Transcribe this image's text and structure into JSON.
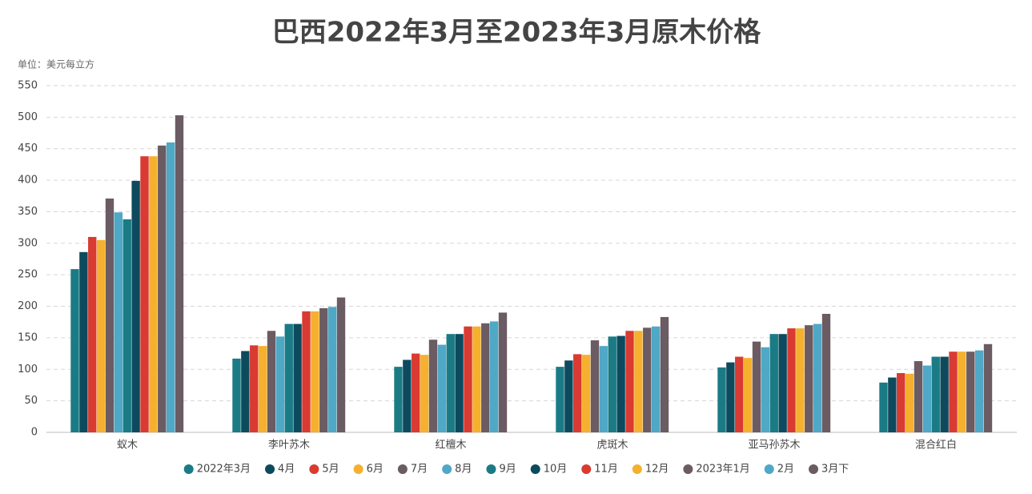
{
  "chart_data": {
    "type": "bar",
    "title": "巴西2022年3月至2023年3月原木价格",
    "y_axis_label": "单位：美元每立方",
    "categories": [
      "蚁木",
      "李叶苏木",
      "红檀木",
      "虎斑木",
      "亚马孙苏木",
      "混合红白"
    ],
    "series": [
      {
        "name": "2022年3月",
        "color": "#1a7b85",
        "values": [
          259,
          117,
          104,
          104,
          103,
          79
        ]
      },
      {
        "name": "4月",
        "color": "#0d4a5e",
        "values": [
          286,
          129,
          115,
          114,
          111,
          87
        ]
      },
      {
        "name": "5月",
        "color": "#d93a32",
        "values": [
          310,
          138,
          125,
          124,
          120,
          94
        ]
      },
      {
        "name": "6月",
        "color": "#f5b02e",
        "values": [
          305,
          137,
          123,
          123,
          118,
          93
        ]
      },
      {
        "name": "7月",
        "color": "#6b5b62",
        "values": [
          371,
          161,
          147,
          146,
          144,
          113
        ]
      },
      {
        "name": "8月",
        "color": "#4fa8c5",
        "values": [
          349,
          152,
          139,
          137,
          135,
          106
        ]
      },
      {
        "name": "9月",
        "color": "#1a7b85",
        "values": [
          338,
          172,
          156,
          152,
          156,
          120
        ]
      },
      {
        "name": "10月",
        "color": "#0d4a5e",
        "values": [
          399,
          172,
          156,
          153,
          156,
          120
        ]
      },
      {
        "name": "11月",
        "color": "#d93a32",
        "values": [
          438,
          192,
          168,
          161,
          165,
          128
        ]
      },
      {
        "name": "12月",
        "color": "#f5b02e",
        "values": [
          438,
          192,
          168,
          161,
          165,
          128
        ]
      },
      {
        "name": "2023年1月",
        "color": "#6b5b62",
        "values": [
          455,
          197,
          173,
          166,
          170,
          128
        ]
      },
      {
        "name": "2月",
        "color": "#4fa8c5",
        "values": [
          460,
          199,
          176,
          168,
          172,
          130
        ]
      },
      {
        "name": "3月下",
        "color": "#6b5b62",
        "values": [
          503,
          214,
          190,
          183,
          188,
          140
        ]
      }
    ],
    "ylim": [
      0,
      550
    ],
    "yticks": [
      0,
      50,
      100,
      150,
      200,
      250,
      300,
      350,
      400,
      450,
      500,
      550
    ],
    "grid": true,
    "legend": "bottom"
  }
}
